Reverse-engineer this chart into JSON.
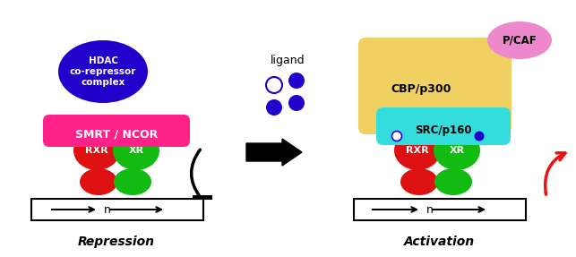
{
  "bg_color": "#ffffff",
  "repression_label": "Repression",
  "activation_label": "Activation",
  "ligand_label": "ligand",
  "hdac_color": "#2200cc",
  "hdac_text": "HDAC\nco-repressor\ncomplex",
  "smrt_color": "#ff2288",
  "smrt_text": "SMRT / NCOR",
  "rxr_color": "#dd1111",
  "rxr_text": "RXR",
  "xr_color": "#11bb11",
  "xr_text": "XR",
  "cbp_color": "#f0d060",
  "cbp_text": "CBP/p300",
  "src_color": "#33dddd",
  "src_text": "SRC/p160",
  "pcaf_color": "#ee88cc",
  "pcaf_text": "P/CAF",
  "red_arrow_color": "#ee1111",
  "ligand_dot_filled": "#2200cc",
  "ligand_dot_empty": "#ffffff",
  "white": "#ffffff",
  "black": "#000000"
}
